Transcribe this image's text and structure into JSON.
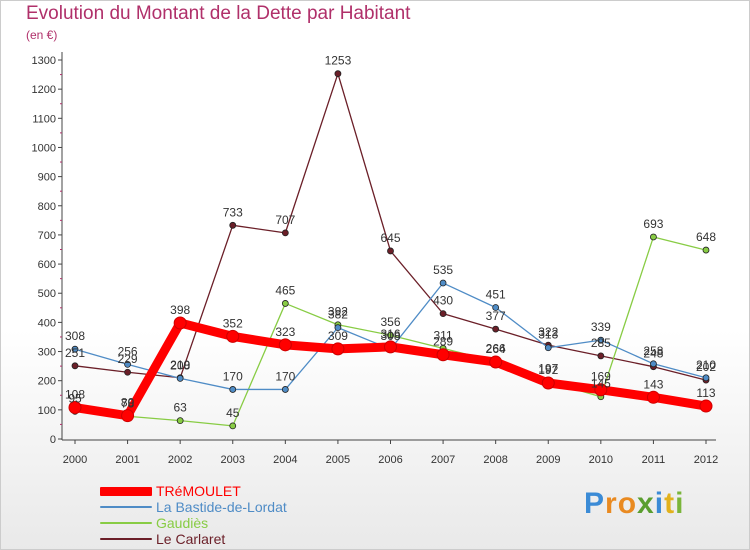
{
  "chart_data": {
    "type": "line",
    "title": "Evolution du Montant de la Dette par Habitant",
    "subtitle": "(en €)",
    "xlabel": "",
    "ylabel": "",
    "categories": [
      "2000",
      "2001",
      "2002",
      "2003",
      "2004",
      "2005",
      "2006",
      "2007",
      "2008",
      "2009",
      "2010",
      "2011",
      "2012"
    ],
    "ylim": [
      0,
      1300
    ],
    "yticks": [
      0,
      100,
      200,
      300,
      400,
      500,
      600,
      700,
      800,
      900,
      1000,
      1100,
      1200,
      1300
    ],
    "grid": false,
    "legend_position": "bottom-left",
    "series": [
      {
        "name": "TRéMOULET",
        "color": "#ff0000",
        "values": [
          108,
          80,
          398,
          352,
          323,
          309,
          316,
          289,
          264,
          192,
          169,
          143,
          113
        ]
      },
      {
        "name": "La Bastide-de-Lordat",
        "color": "#4f8cc6",
        "values": [
          308,
          256,
          208,
          170,
          170,
          382,
          308,
          535,
          451,
          313,
          339,
          258,
          210
        ]
      },
      {
        "name": "Gaudiès",
        "color": "#88cc44",
        "values": [
          95,
          78,
          63,
          45,
          465,
          392,
          356,
          311,
          266,
          197,
          145,
          693,
          648
        ]
      },
      {
        "name": "Le Carlaret",
        "color": "#6b1f28",
        "values": [
          251,
          229,
          210,
          733,
          707,
          1253,
          645,
          430,
          377,
          322,
          285,
          248,
          202
        ]
      }
    ]
  },
  "brand": {
    "p": "P",
    "r": "r",
    "o": "o",
    "x": "x",
    "i": "i",
    "t": "t",
    "i2": "i"
  }
}
